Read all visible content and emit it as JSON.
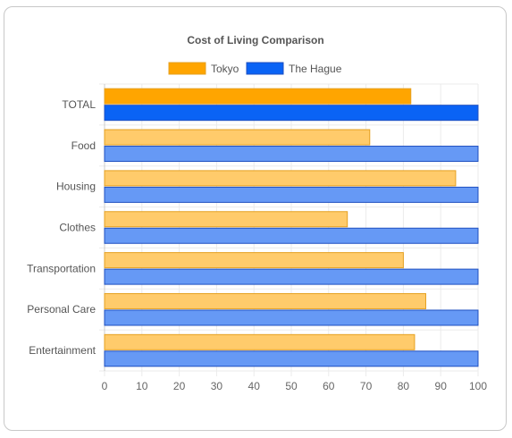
{
  "chart_data": {
    "type": "bar",
    "orientation": "horizontal",
    "title": "Cost of Living Comparison",
    "categories": [
      "TOTAL",
      "Food",
      "Housing",
      "Clothes",
      "Transportation",
      "Personal Care",
      "Entertainment"
    ],
    "series": [
      {
        "name": "Tokyo",
        "values": [
          82,
          71,
          94,
          65,
          80,
          86,
          83
        ],
        "color": "#ffa500",
        "highlight_color": "#ffa500",
        "fill_color": "#ffcb6b",
        "border_color": "#e5a020"
      },
      {
        "name": "The Hague",
        "values": [
          100,
          100,
          100,
          100,
          100,
          100,
          100
        ],
        "color": "#0a63f5",
        "highlight_color": "#0a63f5",
        "fill_color": "#6699f5",
        "border_color": "#1e4fc0"
      }
    ],
    "xlim": [
      0,
      100
    ],
    "xticks": [
      0,
      10,
      20,
      30,
      40,
      50,
      60,
      70,
      80,
      90,
      100
    ],
    "highlight_category": "TOTAL",
    "grid": true,
    "legend_position": "top-center"
  }
}
